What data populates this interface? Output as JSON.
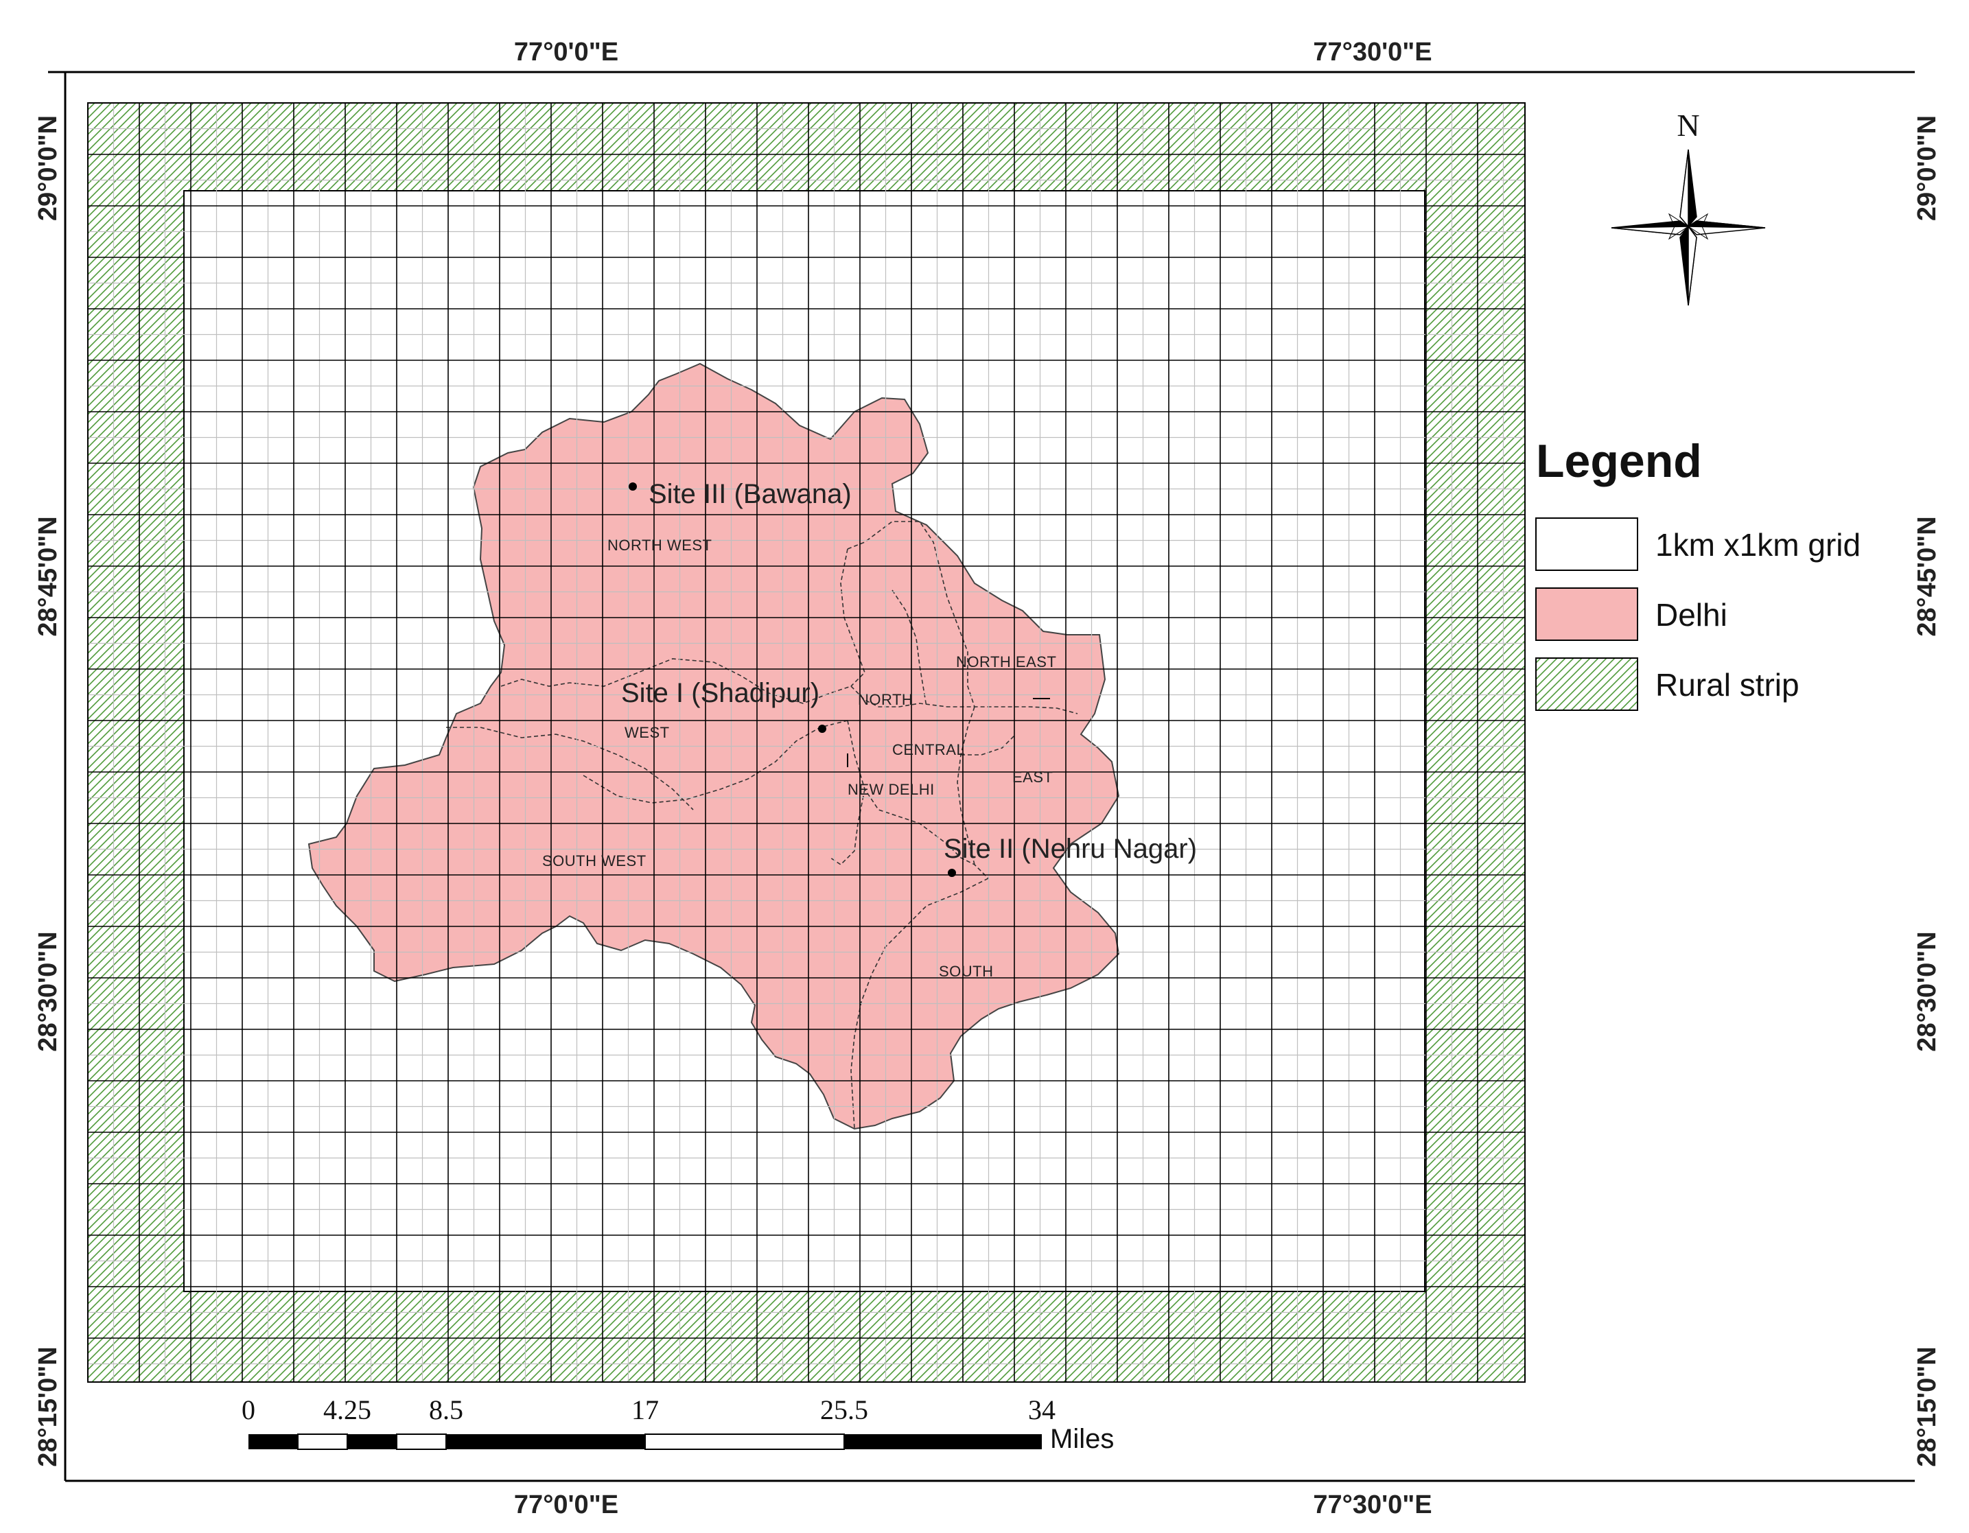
{
  "map": {
    "graticule_top": [
      "77°0'0\"E",
      "77°30'0\"E"
    ],
    "graticule_bottom": [
      "77°0'0\"E",
      "77°30'0\"E"
    ],
    "graticule_left": [
      "29°0'0\"N",
      "28°45'0\"N",
      "28°30'0\"N",
      "28°15'0\"N"
    ],
    "graticule_right": [
      "29°0'0\"N",
      "28°45'0\"N",
      "28°30'0\"N",
      "28°15'0\"N"
    ],
    "districts": {
      "north_west": "NORTH WEST",
      "north": "NORTH",
      "north_east": "NORTH EAST",
      "west": "WEST",
      "central": "CENTRAL",
      "east": "EAST",
      "new_delhi": "NEW DELHI",
      "south_west": "SOUTH WEST",
      "south": "SOUTH"
    },
    "sites": {
      "bawana": "Site III (Bawana)",
      "shadipur": "Site I (Shadipur)",
      "nehru_nagar": "Site II (Nehru Nagar)"
    },
    "colors": {
      "delhi_fill": "#f7b6b6",
      "hatch": "#4f9a3a",
      "grid": "#000000"
    }
  },
  "north_arrow": {
    "label": "N"
  },
  "legend": {
    "title": "Legend",
    "items": [
      {
        "label": "1km x1km grid"
      },
      {
        "label": "Delhi"
      },
      {
        "label": "Rural strip"
      }
    ]
  },
  "scale_bar": {
    "ticks": [
      "0",
      "4.25",
      "8.5",
      "17",
      "25.5",
      "34"
    ],
    "unit": "Miles"
  }
}
